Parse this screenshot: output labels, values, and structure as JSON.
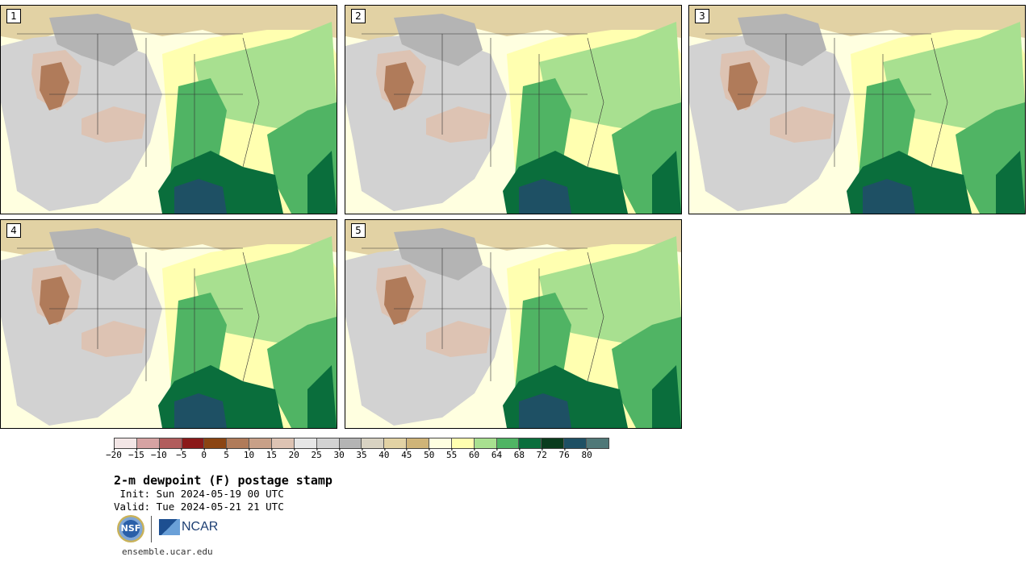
{
  "panels": [
    {
      "label": "1"
    },
    {
      "label": "2"
    },
    {
      "label": "3"
    },
    {
      "label": "4"
    },
    {
      "label": "5"
    }
  ],
  "colorbar": {
    "colors": [
      "#f3e6e6",
      "#d6a3a3",
      "#b15d5d",
      "#8b1a1a",
      "#8b4513",
      "#b07b5a",
      "#c8a088",
      "#ddc3b3",
      "#e6e6e6",
      "#d2d2d2",
      "#b4b4b4",
      "#d8d2c2",
      "#e2d2a4",
      "#cfb478",
      "#ffffe0",
      "#ffffb0",
      "#a8e090",
      "#50b464",
      "#0a6e3c",
      "#0a3c1e",
      "#1e5064",
      "#507878"
    ],
    "ticks": [
      "−20",
      "−15",
      "−10",
      "−5",
      "0",
      "5",
      "10",
      "15",
      "20",
      "25",
      "30",
      "35",
      "40",
      "45",
      "50",
      "55",
      "60",
      "64",
      "68",
      "72",
      "76",
      "80"
    ]
  },
  "title": "2-m dewpoint (F) postage stamp",
  "init": " Init: Sun 2024-05-19 00 UTC",
  "valid": "Valid: Tue 2024-05-21 21 UTC",
  "logos": {
    "nsf": "NSF",
    "ncar": "NCAR"
  },
  "footer_url": "ensemble.ucar.edu"
}
